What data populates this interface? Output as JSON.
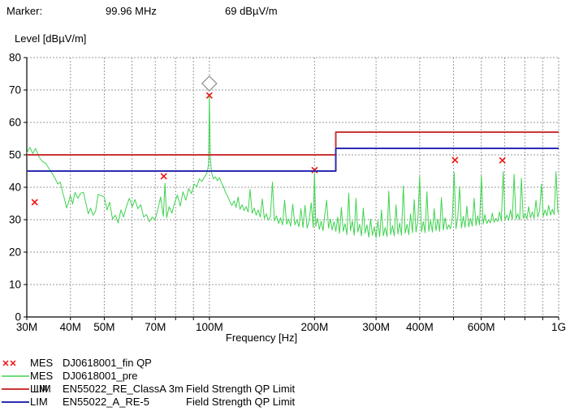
{
  "marker_readout": {
    "label": "Marker:",
    "frequency": "99.96 MHz",
    "level": "69 dBµV/m"
  },
  "colors": {
    "trace_pre": "#3fd34f",
    "limit_classa": "#cb3535",
    "limit_a_re5": "#2c2cb2",
    "fin_marker": "#ee1111",
    "grid": "#9a9a9a",
    "axis": "#000000",
    "diamond_outline": "#8a8a8a"
  },
  "legend": {
    "rows": [
      {
        "swatch": "xx",
        "color": "#ee1111",
        "tag": "MES",
        "name": "DJ0618001_fin QP",
        "desc": ""
      },
      {
        "swatch": "line",
        "color": "#3fd34f",
        "tag": "MES",
        "name": "DJ0618001_pre",
        "desc": ""
      },
      {
        "swatch": "line",
        "color": "#cb3535",
        "tag": "LIM",
        "tag_overprint": "LIM",
        "name": "EN55022_RE_ClassA 3m",
        "desc": "Field Strength QP Limit"
      },
      {
        "swatch": "line",
        "color": "#2c2cb2",
        "tag": "LIM",
        "name": "EN55022_A_RE-5",
        "desc": "Field Strength QP Limit"
      }
    ]
  },
  "chart_data": {
    "type": "line",
    "xlabel": "Frequency [Hz]",
    "ylabel": "Level [dBµV/m]",
    "x_scale": "log",
    "x_range_mhz": [
      30,
      1000
    ],
    "ylim": [
      0,
      80
    ],
    "grid": true,
    "legend_position": "bottom-left",
    "y_ticks": [
      0,
      10,
      20,
      30,
      40,
      50,
      60,
      70,
      80
    ],
    "x_ticks": [
      {
        "mhz": 30,
        "label": "30M"
      },
      {
        "mhz": 40,
        "label": "40M"
      },
      {
        "mhz": 50,
        "label": "50M"
      },
      {
        "mhz": 70,
        "label": "70M"
      },
      {
        "mhz": 100,
        "label": "100M"
      },
      {
        "mhz": 200,
        "label": "200M"
      },
      {
        "mhz": 300,
        "label": "300M"
      },
      {
        "mhz": 400,
        "label": "400M"
      },
      {
        "mhz": 600,
        "label": "600M"
      },
      {
        "mhz": 1000,
        "label": "1G"
      }
    ],
    "x_grid_mhz": [
      30,
      40,
      50,
      60,
      70,
      80,
      90,
      100,
      200,
      300,
      400,
      500,
      600,
      700,
      800,
      900,
      1000
    ],
    "marker": {
      "freq_mhz": 99.96,
      "level_db": 69,
      "diamond_display_level": 72,
      "x_display_level": 68.3
    },
    "series": [
      {
        "name": "DJ0618001_fin QP",
        "role": "fin-qp-markers",
        "type": "points",
        "marker": "x",
        "color": "#ee1111",
        "points": [
          [
            31.6,
            35.4
          ],
          [
            74,
            43.4
          ],
          [
            99.96,
            68.3
          ],
          [
            200,
            45.3
          ],
          [
            505,
            48.4
          ],
          [
            690,
            48.3
          ]
        ]
      },
      {
        "name": "DJ0618001_pre",
        "role": "pre-scan-trace",
        "type": "line",
        "color": "#3fd34f",
        "points": [
          [
            30,
            50.5
          ],
          [
            30.6,
            52.3
          ],
          [
            31.2,
            50.4
          ],
          [
            31.8,
            52.0
          ],
          [
            32.5,
            49.4
          ],
          [
            33.2,
            48.0
          ],
          [
            34,
            47.4
          ],
          [
            34.8,
            45.6
          ],
          [
            35.5,
            44.2
          ],
          [
            36.2,
            42.6
          ],
          [
            36.8,
            41.0
          ],
          [
            37.4,
            41.6
          ],
          [
            38,
            38.4
          ],
          [
            38.5,
            36.2
          ],
          [
            39,
            33.6
          ],
          [
            39.5,
            35.4
          ],
          [
            40,
            37.4
          ],
          [
            40.6,
            34.8
          ],
          [
            41.2,
            38.4
          ],
          [
            42,
            36.6
          ],
          [
            42.8,
            38.2
          ],
          [
            43.6,
            38.4
          ],
          [
            44.4,
            34.6
          ],
          [
            45,
            31.8
          ],
          [
            45.7,
            33.6
          ],
          [
            46.4,
            31.4
          ],
          [
            47.2,
            32.6
          ],
          [
            48,
            37.8
          ],
          [
            49,
            37.4
          ],
          [
            50,
            37.0
          ],
          [
            50.9,
            33.0
          ],
          [
            51.8,
            35.4
          ],
          [
            52.8,
            30.2
          ],
          [
            53.8,
            31.4
          ],
          [
            54.8,
            29.0
          ],
          [
            55.8,
            33.0
          ],
          [
            56.8,
            30.8
          ],
          [
            57.9,
            34.2
          ],
          [
            59,
            36.6
          ],
          [
            60.1,
            34.0
          ],
          [
            61.2,
            36.2
          ],
          [
            62.4,
            33.4
          ],
          [
            63.6,
            34.6
          ],
          [
            64.8,
            30.8
          ],
          [
            66,
            31.6
          ],
          [
            67.3,
            29.4
          ],
          [
            68.6,
            30.8
          ],
          [
            69.9,
            30.0
          ],
          [
            71.2,
            33.2
          ],
          [
            72.5,
            37.0
          ],
          [
            73.8,
            31.0
          ],
          [
            74.6,
            41.2
          ],
          [
            75.4,
            30.6
          ],
          [
            76.7,
            34.0
          ],
          [
            78.1,
            32.0
          ],
          [
            79.5,
            35.2
          ],
          [
            81,
            37.6
          ],
          [
            82.5,
            34.2
          ],
          [
            84,
            38.6
          ],
          [
            85.6,
            36.0
          ],
          [
            87.2,
            39.6
          ],
          [
            88.8,
            38.0
          ],
          [
            90.4,
            41.0
          ],
          [
            92,
            40.2
          ],
          [
            93.6,
            42.6
          ],
          [
            95.2,
            41.8
          ],
          [
            96.8,
            43.2
          ],
          [
            98.4,
            44.4
          ],
          [
            99.4,
            47.0
          ],
          [
            99.96,
            68.0
          ],
          [
            100.6,
            49.0
          ],
          [
            101.4,
            44.6
          ],
          [
            102.6,
            42.6
          ],
          [
            104,
            43.2
          ],
          [
            105.4,
            42.0
          ],
          [
            106.8,
            43.0
          ],
          [
            108.2,
            41.4
          ],
          [
            109.7,
            40.2
          ],
          [
            111.2,
            38.4
          ],
          [
            112.8,
            37.2
          ],
          [
            114.4,
            35.6
          ],
          [
            116,
            34.4
          ],
          [
            117.6,
            35.8
          ],
          [
            119.2,
            33.8
          ],
          [
            120.8,
            37.0
          ],
          [
            122.4,
            33.2
          ],
          [
            124,
            34.6
          ],
          [
            125.7,
            32.8
          ],
          [
            127.4,
            34.0
          ],
          [
            129.1,
            32.4
          ],
          [
            130.8,
            39.4
          ],
          [
            132.5,
            32.0
          ],
          [
            134.3,
            33.6
          ],
          [
            136.1,
            31.4
          ],
          [
            137.9,
            33.0
          ],
          [
            139.8,
            30.8
          ],
          [
            141.7,
            36.4
          ],
          [
            143.6,
            30.4
          ],
          [
            145.5,
            31.8
          ],
          [
            147.5,
            29.8
          ],
          [
            149.5,
            31.0
          ],
          [
            151.5,
            41.6
          ],
          [
            153.5,
            29.6
          ],
          [
            155.6,
            31.2
          ],
          [
            157.7,
            28.8
          ],
          [
            159.8,
            30.6
          ],
          [
            162,
            28.4
          ],
          [
            164.2,
            36.0
          ],
          [
            166.4,
            28.6
          ],
          [
            168.6,
            30.2
          ],
          [
            170.9,
            28.0
          ],
          [
            173.2,
            34.8
          ],
          [
            175.6,
            28.4
          ],
          [
            178,
            30.0
          ],
          [
            180.4,
            27.8
          ],
          [
            182.8,
            33.4
          ],
          [
            185.3,
            27.6
          ],
          [
            187.8,
            34.4
          ],
          [
            190.4,
            27.4
          ],
          [
            193,
            29.8
          ],
          [
            195.6,
            35.2
          ],
          [
            198.2,
            27.6
          ],
          [
            199.9,
            44.6
          ],
          [
            201.6,
            28.0
          ],
          [
            204,
            30.4
          ],
          [
            206.5,
            27.0
          ],
          [
            209,
            29.6
          ],
          [
            211.5,
            26.6
          ],
          [
            214.1,
            31.8
          ],
          [
            216.7,
            36.0
          ],
          [
            219.3,
            27.4
          ],
          [
            222,
            30.2
          ],
          [
            224.7,
            26.8
          ],
          [
            227.4,
            29.4
          ],
          [
            230.2,
            26.4
          ],
          [
            233,
            30.8
          ],
          [
            235.8,
            25.8
          ],
          [
            238.7,
            33.8
          ],
          [
            241.6,
            26.4
          ],
          [
            244.5,
            28.8
          ],
          [
            247.5,
            25.4
          ],
          [
            250.5,
            38.2
          ],
          [
            253.5,
            26.6
          ],
          [
            256.6,
            29.6
          ],
          [
            259.7,
            25.2
          ],
          [
            262.8,
            36.6
          ],
          [
            266,
            26.2
          ],
          [
            269.2,
            28.6
          ],
          [
            272.5,
            25.0
          ],
          [
            275.8,
            33.6
          ],
          [
            279.1,
            25.8
          ],
          [
            282.5,
            28.4
          ],
          [
            285.9,
            24.6
          ],
          [
            289.4,
            30.2
          ],
          [
            292.9,
            25.2
          ],
          [
            296.4,
            27.8
          ],
          [
            300,
            24.4
          ],
          [
            303.6,
            29.6
          ],
          [
            307.3,
            24.8
          ],
          [
            311,
            33.0
          ],
          [
            314.8,
            25.0
          ],
          [
            318.6,
            27.6
          ],
          [
            322.4,
            24.8
          ],
          [
            326.3,
            38.8
          ],
          [
            330.2,
            25.4
          ],
          [
            334.2,
            28.2
          ],
          [
            338.2,
            25.0
          ],
          [
            342.3,
            34.6
          ],
          [
            346.4,
            25.6
          ],
          [
            350.6,
            29.0
          ],
          [
            354.8,
            25.2
          ],
          [
            359.1,
            40.4
          ],
          [
            363.4,
            25.8
          ],
          [
            367.8,
            28.6
          ],
          [
            372.2,
            25.4
          ],
          [
            376.7,
            31.8
          ],
          [
            381.2,
            26.0
          ],
          [
            385.8,
            36.2
          ],
          [
            390.4,
            26.2
          ],
          [
            395.1,
            29.4
          ],
          [
            399.9,
            43.4
          ],
          [
            404.7,
            26.2
          ],
          [
            409.6,
            29.4
          ],
          [
            414.5,
            26.0
          ],
          [
            419.5,
            38.6
          ],
          [
            424.6,
            26.4
          ],
          [
            429.7,
            29.8
          ],
          [
            434.9,
            26.2
          ],
          [
            440.1,
            33.4
          ],
          [
            445.4,
            26.6
          ],
          [
            450.8,
            30.2
          ],
          [
            456.2,
            26.4
          ],
          [
            461.7,
            36.8
          ],
          [
            467.3,
            26.8
          ],
          [
            472.9,
            30.6
          ],
          [
            478.6,
            27.0
          ],
          [
            484.4,
            28.4
          ],
          [
            490.2,
            27.2
          ],
          [
            496.1,
            31.0
          ],
          [
            502.1,
            44.6
          ],
          [
            508.1,
            27.2
          ],
          [
            514.2,
            30.8
          ],
          [
            520.4,
            40.2
          ],
          [
            526.7,
            27.4
          ],
          [
            533,
            31.0
          ],
          [
            539.4,
            27.6
          ],
          [
            545.9,
            34.2
          ],
          [
            552.5,
            27.8
          ],
          [
            559.1,
            30.4
          ],
          [
            565.8,
            28.0
          ],
          [
            572.6,
            36.6
          ],
          [
            579.5,
            28.2
          ],
          [
            586.5,
            31.2
          ],
          [
            593.5,
            28.4
          ],
          [
            600.6,
            43.6
          ],
          [
            607.8,
            28.6
          ],
          [
            615.1,
            31.6
          ],
          [
            622.5,
            28.8
          ],
          [
            630,
            30.0
          ],
          [
            637.6,
            29.0
          ],
          [
            645.3,
            32.0
          ],
          [
            653.1,
            29.2
          ],
          [
            661,
            30.4
          ],
          [
            669,
            29.4
          ],
          [
            677.1,
            32.4
          ],
          [
            685.3,
            29.6
          ],
          [
            693.6,
            44.8
          ],
          [
            702,
            30.0
          ],
          [
            710.5,
            31.4
          ],
          [
            719.1,
            29.8
          ],
          [
            727.8,
            33.0
          ],
          [
            736.6,
            30.0
          ],
          [
            745.5,
            44.0
          ],
          [
            754.5,
            30.2
          ],
          [
            763.6,
            31.8
          ],
          [
            772.8,
            30.0
          ],
          [
            782.1,
            42.8
          ],
          [
            791.5,
            30.4
          ],
          [
            801,
            32.0
          ],
          [
            810.7,
            30.2
          ],
          [
            820.5,
            34.0
          ],
          [
            830.4,
            30.6
          ],
          [
            840.4,
            32.4
          ],
          [
            850.6,
            30.4
          ],
          [
            860.9,
            36.0
          ],
          [
            871.3,
            30.8
          ],
          [
            881.8,
            32.8
          ],
          [
            892.5,
            41.0
          ],
          [
            903.3,
            31.0
          ],
          [
            914.2,
            33.0
          ],
          [
            925.3,
            31.2
          ],
          [
            936.5,
            34.4
          ],
          [
            947.8,
            31.4
          ],
          [
            959.3,
            33.2
          ],
          [
            970.9,
            31.6
          ],
          [
            982.6,
            44.8
          ],
          [
            994.5,
            32.4
          ],
          [
            1000,
            32.0
          ]
        ]
      },
      {
        "name": "EN55022_RE_ClassA 3m",
        "role": "limit-classa-3m",
        "type": "limit",
        "color": "#cb3535",
        "points": [
          [
            30,
            50
          ],
          [
            230,
            50
          ],
          [
            230,
            57
          ],
          [
            1000,
            57
          ]
        ]
      },
      {
        "name": "EN55022_A_RE-5",
        "role": "limit-a-re5",
        "type": "limit",
        "color": "#2c2cb2",
        "points": [
          [
            30,
            45
          ],
          [
            230,
            45
          ],
          [
            230,
            52
          ],
          [
            1000,
            52
          ]
        ]
      }
    ]
  }
}
